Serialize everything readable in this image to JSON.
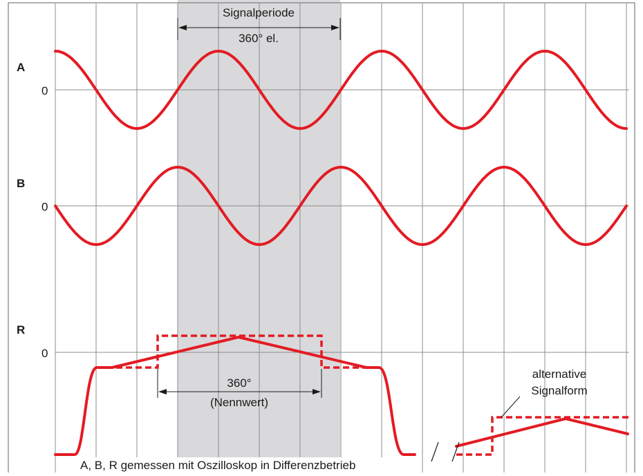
{
  "colors": {
    "signal": "#e31b23",
    "grid": "#8c8c8c",
    "band": "#d9d9db",
    "frame": "#7a7a7a",
    "text": "#1a1a1a"
  },
  "period_annotation": {
    "title": "Signalperiode",
    "value": "360° el."
  },
  "channels": [
    {
      "name": "A",
      "zero_label": "0"
    },
    {
      "name": "B",
      "zero_label": "0"
    },
    {
      "name": "R",
      "zero_label": "0"
    }
  ],
  "reference_annotation": {
    "value": "360°",
    "note": "(Nennwert)"
  },
  "alternative_annotation": {
    "line1": "alternative",
    "line2": "Signalform"
  },
  "footer": {
    "caption": "A, B, R gemessen mit Oszilloskop in Differenzbetrieb"
  }
}
